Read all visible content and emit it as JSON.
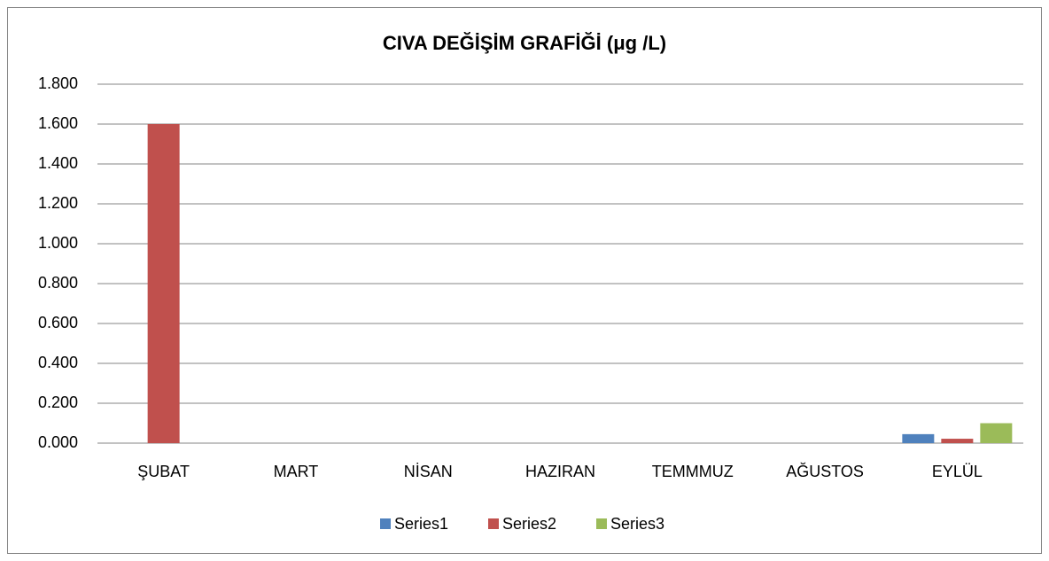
{
  "chart_data": {
    "type": "bar",
    "title": "CIVA DEĞİŞİM GRAFİĞİ (μg /L)",
    "categories": [
      "ŞUBAT",
      "MART",
      "NİSAN",
      "HAZIRAN",
      "TEMMMUZ",
      "AĞUSTOS",
      "EYLÜL"
    ],
    "series": [
      {
        "name": "Series1",
        "color": "#4f81bd",
        "values": [
          0,
          0,
          0,
          0,
          0,
          0,
          0.045
        ]
      },
      {
        "name": "Series2",
        "color": "#c0504d",
        "values": [
          1.6,
          0,
          0,
          0,
          0,
          0,
          0.022
        ]
      },
      {
        "name": "Series3",
        "color": "#9bbb59",
        "values": [
          0,
          0,
          0,
          0,
          0,
          0,
          0.1
        ]
      }
    ],
    "ylim": [
      0,
      1.8
    ],
    "yticks": [
      {
        "value": 0,
        "label": "0.000"
      },
      {
        "value": 0.2,
        "label": "0.200"
      },
      {
        "value": 0.4,
        "label": "0.400"
      },
      {
        "value": 0.6,
        "label": "0.600"
      },
      {
        "value": 0.8,
        "label": "0.800"
      },
      {
        "value": 1.0,
        "label": "1.000"
      },
      {
        "value": 1.2,
        "label": "1.200"
      },
      {
        "value": 1.4,
        "label": "1.400"
      },
      {
        "value": 1.6,
        "label": "1.600"
      },
      {
        "value": 1.8,
        "label": "1.800"
      }
    ],
    "grid": true,
    "legend": "bottom"
  }
}
